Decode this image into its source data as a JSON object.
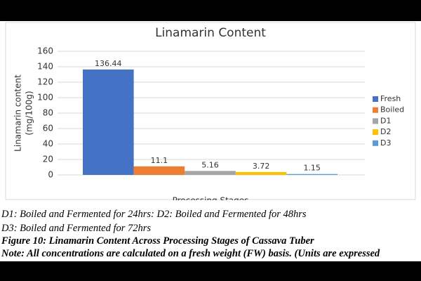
{
  "chart_data": {
    "type": "bar",
    "title": "Linamarin Content",
    "y_label_lines": [
      "Linamarin content",
      "(mg/100g)"
    ],
    "x_label": "Processing Stages",
    "series": [
      {
        "name": "Fresh",
        "color": "#4472c4",
        "values": [
          136.44
        ]
      },
      {
        "name": "Boiled",
        "color": "#ed7d31",
        "values": [
          11.1
        ]
      },
      {
        "name": "D1",
        "color": "#a5a5a5",
        "values": [
          5.16
        ]
      },
      {
        "name": "D2",
        "color": "#ffc000",
        "values": [
          3.72
        ]
      },
      {
        "name": "D3",
        "color": "#5b9bd5",
        "values": [
          1.15
        ]
      }
    ],
    "ylim": [
      0,
      160
    ],
    "yticks": [
      0,
      20,
      40,
      60,
      80,
      100,
      120,
      140,
      160
    ],
    "grid": true,
    "legend": "right"
  },
  "caption": {
    "lines": [
      "D1: Boiled and Fermented for 24hrs: D2: Boiled and Fermented for 48hrs",
      "D3: Boiled and Fermented for 72hrs",
      "Figure 10: Linamarin Content Across Processing Stages of Cassava Tuber",
      "Note: All concentrations are calculated on a fresh weight (FW) basis. (Units are expressed"
    ]
  }
}
